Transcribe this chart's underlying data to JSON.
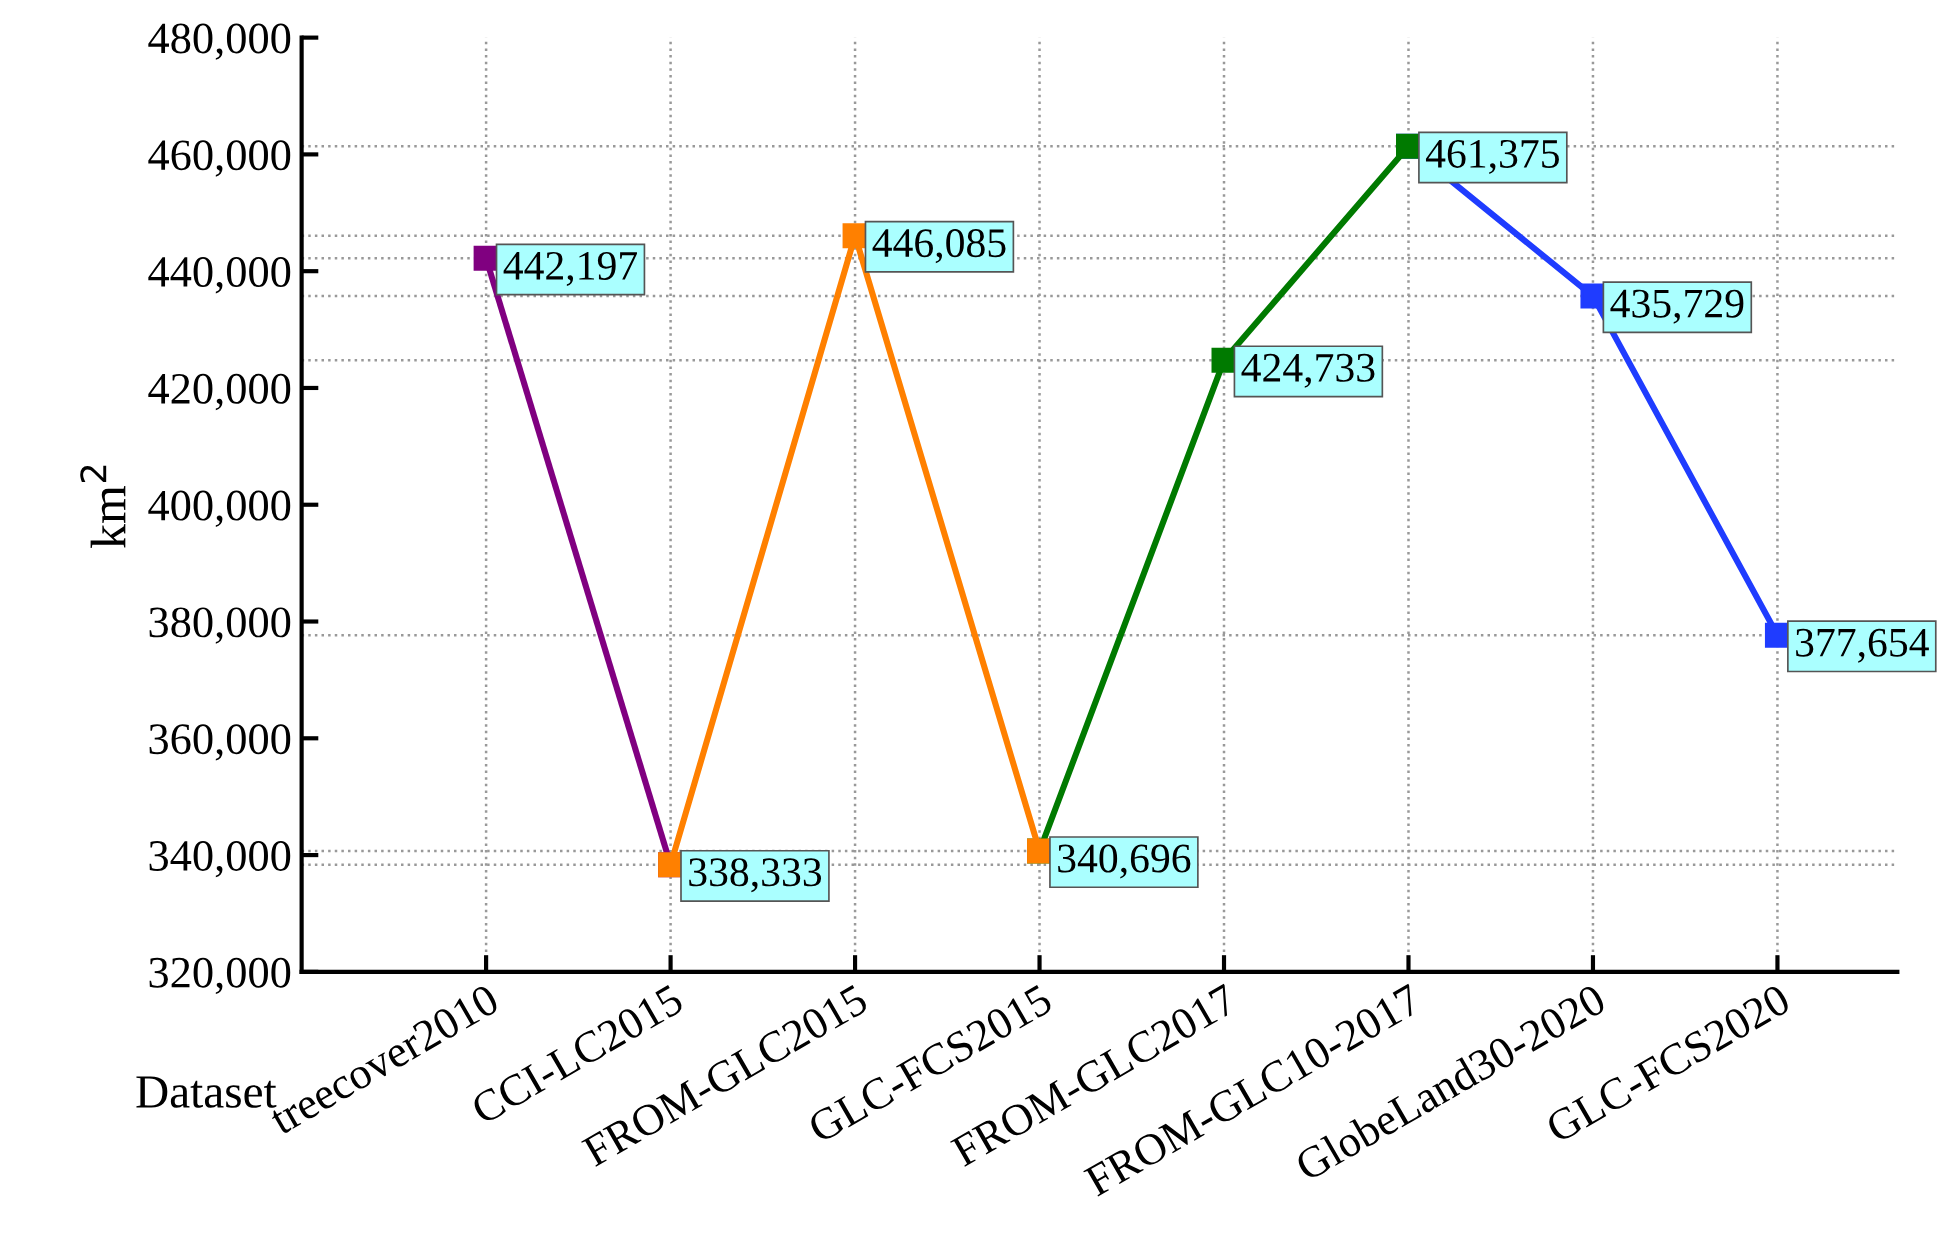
{
  "chart_data": {
    "type": "line",
    "xlabel": "Dataset",
    "ylabel": "km$^{2}$",
    "categories": [
      "treecover2010",
      "CCI-LC2015",
      "FROM-GLC2015",
      "GLC-FCS2015",
      "FROM-GLC2017",
      "FROM-GLC10-2017",
      "GlobeLand30-2020",
      "GLC-FCS2020"
    ],
    "series": [
      {
        "color": "#800080",
        "values": [
          442197,
          338333,
          null,
          null,
          null,
          null,
          null,
          null
        ],
        "value_labels": [
          "442,197",
          null,
          null,
          null,
          null,
          null,
          null,
          null
        ]
      },
      {
        "color": "#1f3cff",
        "values": [
          null,
          null,
          null,
          null,
          null,
          461375,
          435729,
          377654
        ],
        "value_labels": [
          null,
          null,
          null,
          null,
          null,
          null,
          "435,729",
          "377,654"
        ]
      },
      {
        "color": "#007a00",
        "values": [
          null,
          null,
          null,
          340696,
          424733,
          461375,
          null,
          null
        ],
        "value_labels": [
          null,
          null,
          null,
          null,
          "424,733",
          "461,375",
          null,
          null
        ]
      },
      {
        "color": "#ff8000",
        "values": [
          null,
          338333,
          446085,
          340696,
          null,
          null,
          null,
          null
        ],
        "value_labels": [
          null,
          "338,333",
          "446,085",
          "340,696",
          null,
          null,
          null,
          null
        ]
      }
    ],
    "ylim": [
      320000,
      480000
    ],
    "yticks": [
      {
        "value": 320000,
        "label": "320,000"
      },
      {
        "value": 340000,
        "label": "340,000"
      },
      {
        "value": 360000,
        "label": "360,000"
      },
      {
        "value": 380000,
        "label": "380,000"
      },
      {
        "value": 400000,
        "label": "400,000"
      },
      {
        "value": 420000,
        "label": "420,000"
      },
      {
        "value": 440000,
        "label": "440,000"
      },
      {
        "value": 460000,
        "label": "460,000"
      },
      {
        "value": 480000,
        "label": "480,000"
      }
    ],
    "ref_lines": [
      {
        "axis": "y",
        "value": 442197,
        "color": "#999999",
        "line_style": "dotted"
      },
      {
        "axis": "y",
        "value": 338333,
        "color": "#999999",
        "line_style": "dotted"
      },
      {
        "axis": "y",
        "value": 446085,
        "color": "#999999",
        "line_style": "dotted"
      },
      {
        "axis": "y",
        "value": 340696,
        "color": "#999999",
        "line_style": "dotted"
      },
      {
        "axis": "y",
        "value": 424733,
        "color": "#999999",
        "line_style": "dotted"
      },
      {
        "axis": "y",
        "value": 461375,
        "color": "#999999",
        "line_style": "dotted"
      },
      {
        "axis": "y",
        "value": 435729,
        "color": "#999999",
        "line_style": "dotted"
      },
      {
        "axis": "y",
        "value": 377654,
        "color": "#999999",
        "line_style": "dotted"
      }
    ],
    "grid": "x",
    "marker": "square",
    "line_style": "solid",
    "legend": false
  }
}
